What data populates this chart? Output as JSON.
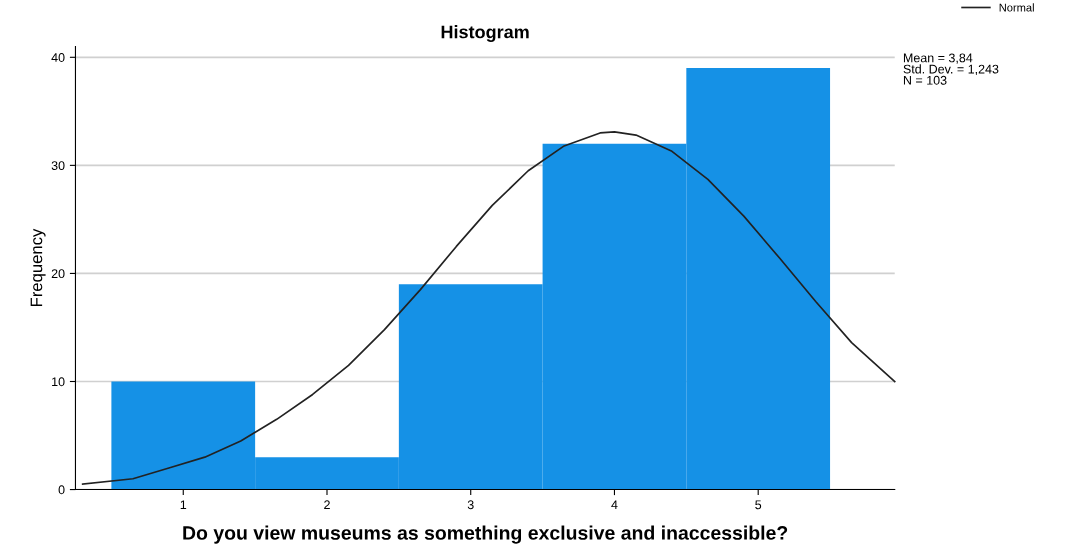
{
  "chart_data": {
    "type": "histogram",
    "title": "Histogram",
    "xlabel": "Do you view museums as something exclusive and inaccessible?",
    "ylabel": "Frequency",
    "bins": [
      0.5,
      1.5,
      2.5,
      3.5,
      4.5,
      5.5
    ],
    "values": [
      10,
      3,
      19,
      32,
      39
    ],
    "color": "#1591e6",
    "series": [
      {
        "name": "Normal",
        "type": "line",
        "color": "#222222",
        "x": [
          0.3,
          0.65,
          0.9,
          1.15,
          1.4,
          1.65,
          1.9,
          2.15,
          2.4,
          2.65,
          2.9,
          3.15,
          3.4,
          3.65,
          3.9,
          4.0,
          4.15,
          4.4,
          4.65,
          4.9,
          5.15,
          5.4,
          5.65,
          5.95
        ],
        "values": [
          0.5,
          1,
          2,
          3,
          4.5,
          6.5,
          8.8,
          11.5,
          14.8,
          18.5,
          22.5,
          26.3,
          29.5,
          31.8,
          33.0,
          33.1,
          32.8,
          31.3,
          28.7,
          25.3,
          21.4,
          17.4,
          13.6,
          10.0
        ]
      }
    ],
    "xlim": [
      0.25,
      5.95
    ],
    "xticks": [
      1,
      2,
      3,
      4,
      5
    ],
    "ylim": [
      0,
      41
    ],
    "yticks": [
      0,
      10,
      20,
      30,
      40
    ],
    "grid": "y",
    "legend": "top right",
    "marker": "none",
    "annotations": [
      "Mean = 3,84\nStd. Dev. = 1,243\nN = 103"
    ]
  }
}
